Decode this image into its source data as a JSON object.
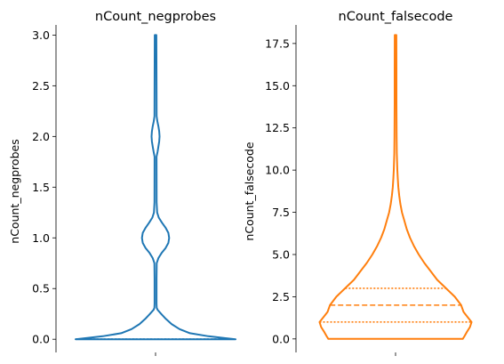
{
  "chart_data": [
    {
      "type": "violin",
      "title": "nCount_negprobes",
      "ylabel": "nCount_negprobes",
      "xlabel": "",
      "ylim": [
        -0.13,
        3.1
      ],
      "yticks": [
        "0.0",
        "0.5",
        "1.0",
        "1.5",
        "2.0",
        "2.5",
        "3.0"
      ],
      "ytick_values": [
        0,
        0.5,
        1.0,
        1.5,
        2.0,
        2.5,
        3.0
      ],
      "color": "#1f77b4",
      "grid": false,
      "density_profile": [
        [
          0.0,
          1.0
        ],
        [
          0.03,
          0.66
        ],
        [
          0.06,
          0.43
        ],
        [
          0.1,
          0.3
        ],
        [
          0.15,
          0.2
        ],
        [
          0.2,
          0.13
        ],
        [
          0.25,
          0.07
        ],
        [
          0.29,
          0.025
        ],
        [
          0.31,
          0.014
        ],
        [
          0.35,
          0.012
        ],
        [
          0.6,
          0.012
        ],
        [
          0.75,
          0.014
        ],
        [
          0.8,
          0.035
        ],
        [
          0.85,
          0.075
        ],
        [
          0.9,
          0.125
        ],
        [
          0.95,
          0.16
        ],
        [
          1.0,
          0.17
        ],
        [
          1.05,
          0.16
        ],
        [
          1.1,
          0.125
        ],
        [
          1.15,
          0.08
        ],
        [
          1.2,
          0.04
        ],
        [
          1.25,
          0.02
        ],
        [
          1.35,
          0.013
        ],
        [
          1.8,
          0.012
        ],
        [
          1.85,
          0.025
        ],
        [
          1.9,
          0.035
        ],
        [
          1.95,
          0.045
        ],
        [
          2.0,
          0.05
        ],
        [
          2.05,
          0.045
        ],
        [
          2.1,
          0.035
        ],
        [
          2.15,
          0.022
        ],
        [
          2.2,
          0.013
        ],
        [
          2.5,
          0.012
        ],
        [
          3.0,
          0.01
        ]
      ],
      "quartiles": [
        0,
        0,
        0
      ]
    },
    {
      "type": "violin",
      "title": "nCount_falsecode",
      "ylabel": "nCount_falsecode",
      "xlabel": "",
      "ylim": [
        -0.8,
        18.6
      ],
      "yticks": [
        "0.0",
        "2.5",
        "5.0",
        "7.5",
        "10.0",
        "12.5",
        "15.0",
        "17.5"
      ],
      "ytick_values": [
        0,
        2.5,
        5.0,
        7.5,
        10.0,
        12.5,
        15.0,
        17.5
      ],
      "color": "#ff7f0e",
      "grid": false,
      "density_profile": [
        [
          0.0,
          0.84
        ],
        [
          0.15,
          0.86
        ],
        [
          0.4,
          0.89
        ],
        [
          0.7,
          0.93
        ],
        [
          1.0,
          0.95
        ],
        [
          1.3,
          0.9
        ],
        [
          1.6,
          0.85
        ],
        [
          2.0,
          0.82
        ],
        [
          2.5,
          0.74
        ],
        [
          3.0,
          0.63
        ],
        [
          3.5,
          0.52
        ],
        [
          4.0,
          0.44
        ],
        [
          4.5,
          0.36
        ],
        [
          5.0,
          0.29
        ],
        [
          5.5,
          0.23
        ],
        [
          6.0,
          0.18
        ],
        [
          6.5,
          0.14
        ],
        [
          7.0,
          0.11
        ],
        [
          7.5,
          0.08
        ],
        [
          8.0,
          0.06
        ],
        [
          8.5,
          0.045
        ],
        [
          9.0,
          0.035
        ],
        [
          9.5,
          0.028
        ],
        [
          10.0,
          0.022
        ],
        [
          11.0,
          0.016
        ],
        [
          12.0,
          0.013
        ],
        [
          14.0,
          0.011
        ],
        [
          16.0,
          0.011
        ],
        [
          18.0,
          0.01
        ]
      ],
      "quartiles": [
        1.0,
        2.0,
        3.0
      ]
    }
  ]
}
